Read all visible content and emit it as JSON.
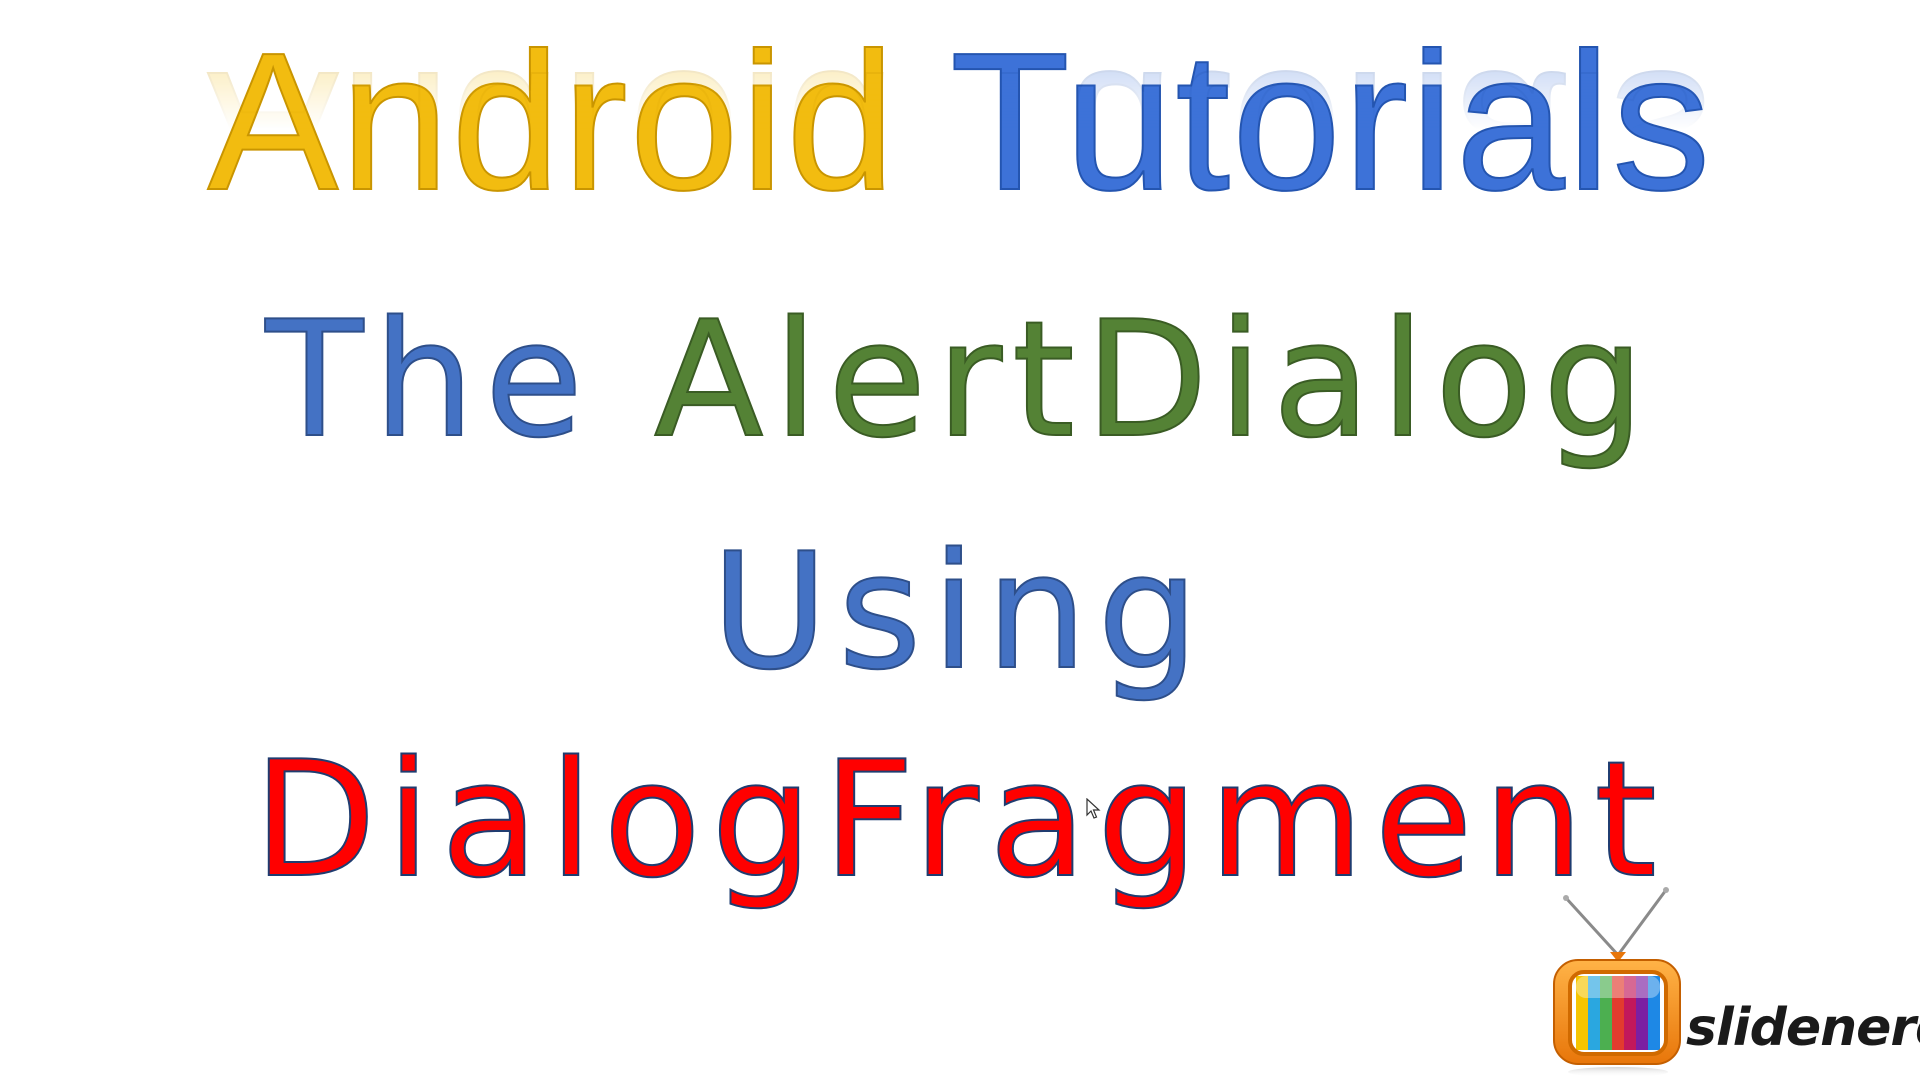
{
  "slide": {
    "heading": {
      "word1": "Android",
      "word2": "Tutorials",
      "colors": {
        "word1": "#f2bc10",
        "word2": "#3d72d8"
      }
    },
    "title_line1": {
      "part1": "The",
      "part2": "AlertDialog",
      "colors": {
        "part1": "#4472c4",
        "part2": "#548235"
      }
    },
    "title_line2": {
      "text": "Using",
      "color": "#4472c4"
    },
    "title_line3": {
      "text": "DialogFragment",
      "color": "#ff0000"
    },
    "logo": {
      "icon": "tv-icon",
      "wordmark": "slidenerd"
    },
    "cursor_icon": "mouse-pointer-icon"
  }
}
